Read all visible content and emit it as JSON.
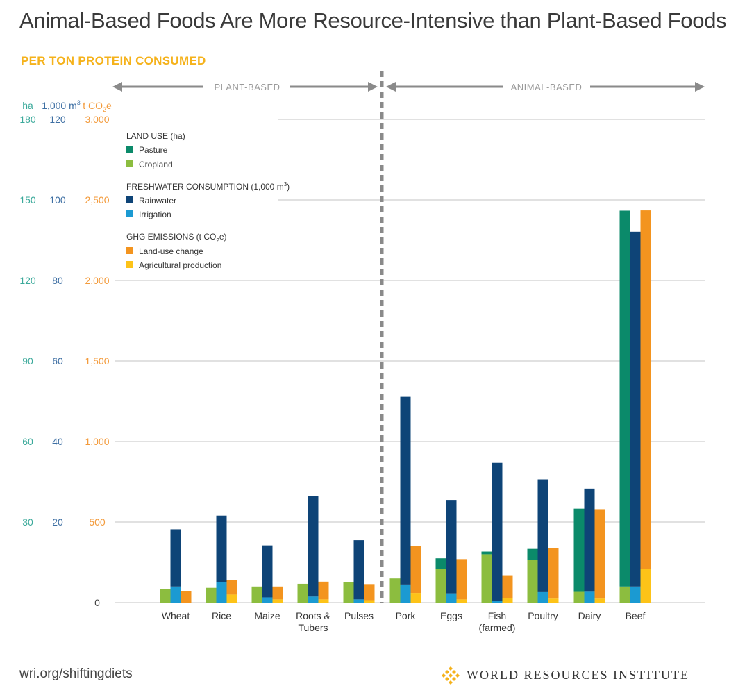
{
  "title": "Animal-Based Foods Are More Resource-Intensive than Plant-Based Foods",
  "subtitle": "PER TON PROTEIN CONSUMED",
  "sections": {
    "plant": "PLANT-BASED",
    "animal": "ANIMAL-BASED"
  },
  "axes": {
    "ha": {
      "unit": "ha",
      "ticks": [
        "180",
        "150",
        "120",
        "90",
        "60",
        "30"
      ],
      "color": "#3aa99a"
    },
    "water": {
      "unit_main": "1,000 m",
      "unit_sup": "3",
      "ticks": [
        "120",
        "100",
        "80",
        "60",
        "40",
        "20"
      ],
      "color": "#3e6fa3"
    },
    "co2": {
      "unit_main": "t CO",
      "unit_sub": "2",
      "unit_end": "e",
      "ticks": [
        "3,000",
        "2,500",
        "2,000",
        "1,500",
        "1,000",
        "500",
        "0"
      ],
      "color": "#f39a3a"
    }
  },
  "legend": {
    "land_title": "LAND USE (ha)",
    "water_title_main": "FRESHWATER CONSUMPTION (1,000 m",
    "water_title_sup": "3",
    "water_title_end": ")",
    "ghg_title_main": "GHG EMISSIONS (t CO",
    "ghg_title_sub": "2",
    "ghg_title_end": "e)",
    "items": {
      "pasture": "Pasture",
      "cropland": "Cropland",
      "rainwater": "Rainwater",
      "irrigation": "Irrigation",
      "luc": "Land-use change",
      "agprod": "Agricultural production"
    }
  },
  "colors": {
    "pasture": "#0b8a6a",
    "cropland": "#8cbd3f",
    "rainwater": "#0e4477",
    "irrigation": "#1b9ad2",
    "luc": "#f3941f",
    "agprod": "#fdc318",
    "grid": "#cfcfcf",
    "divider": "#8a8a8a"
  },
  "chart_data": {
    "type": "bar",
    "categories": [
      "Wheat",
      "Rice",
      "Maize",
      "Roots & Tubers",
      "Pulses",
      "Pork",
      "Eggs",
      "Fish (farmed)",
      "Poultry",
      "Dairy",
      "Beef"
    ],
    "category_lines": [
      [
        "Wheat"
      ],
      [
        "Rice"
      ],
      [
        "Maize"
      ],
      [
        "Roots &",
        "Tubers"
      ],
      [
        "Pulses"
      ],
      [
        "Pork"
      ],
      [
        "Eggs"
      ],
      [
        "Fish",
        "(farmed)"
      ],
      [
        "Poultry"
      ],
      [
        "Dairy"
      ],
      [
        "Beef"
      ]
    ],
    "y_axes": {
      "land_use_ha": [
        0,
        180
      ],
      "freshwater_1000m3": [
        0,
        120
      ],
      "ghg_tco2e": [
        0,
        3000
      ]
    },
    "land_use_ha": {
      "pasture": [
        0,
        0,
        0,
        0,
        0,
        0,
        4,
        1,
        4,
        31,
        140
      ],
      "cropland": [
        5,
        5.5,
        6,
        7,
        7.5,
        9,
        12.5,
        18,
        16,
        4,
        6
      ]
    },
    "freshwater_1000m3": {
      "irrigation": [
        4,
        5,
        1.3,
        1.5,
        0.8,
        4.5,
        2.3,
        0.5,
        2.6,
        2.7,
        4
      ],
      "rainwater": [
        14.2,
        16.6,
        12.9,
        25,
        14.7,
        46.6,
        23.2,
        34.2,
        28,
        25.6,
        88.1
      ]
    },
    "ghg_tco2e": {
      "agprod": [
        0,
        50,
        20,
        20,
        15,
        60,
        20,
        30,
        25,
        25,
        210
      ],
      "land_use_change": [
        70,
        90,
        80,
        110,
        100,
        290,
        250,
        140,
        315,
        555,
        2225
      ]
    },
    "grid": true,
    "legend_position": "top-left"
  },
  "footer": {
    "url": "wri.org/shiftingdiets",
    "org": "WORLD RESOURCES INSTITUTE"
  }
}
